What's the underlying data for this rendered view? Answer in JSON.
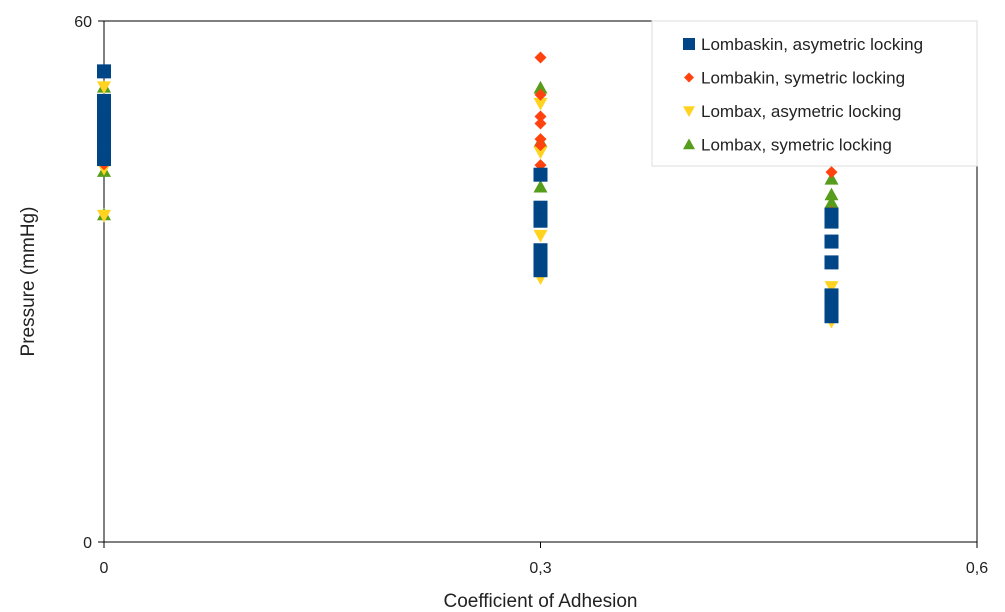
{
  "chart_data": {
    "type": "scatter",
    "title": "",
    "xlabel": "Coefficient of Adhesion",
    "ylabel": "Pressure (mmHg)",
    "xlim": [
      0,
      0.6
    ],
    "ylim": [
      0,
      60
    ],
    "x_ticks": [
      {
        "value": 0,
        "label": "0"
      },
      {
        "value": 0.3,
        "label": "0,3"
      },
      {
        "value": 0.6,
        "label": "0,6"
      }
    ],
    "y_ticks": [
      {
        "value": 0,
        "label": "0"
      },
      {
        "value": 60,
        "label": "60"
      }
    ],
    "grid": false,
    "legend_position": "top-right",
    "series": [
      {
        "name": "Lombaskin, asymetric locking",
        "marker": "square",
        "color": "#004586",
        "points": [
          [
            0,
            54.2
          ],
          [
            0,
            50.8
          ],
          [
            0,
            50.1
          ],
          [
            0,
            49.5
          ],
          [
            0,
            48.6
          ],
          [
            0,
            47.7
          ],
          [
            0,
            46.9
          ],
          [
            0,
            46.2
          ],
          [
            0,
            45.3
          ],
          [
            0,
            44.7
          ],
          [
            0,
            44.1
          ],
          [
            0.3,
            42.3
          ],
          [
            0.3,
            38.5
          ],
          [
            0.3,
            37.6
          ],
          [
            0.3,
            37.0
          ],
          [
            0.3,
            33.6
          ],
          [
            0.3,
            32.8
          ],
          [
            0.3,
            32.0
          ],
          [
            0.3,
            31.3
          ],
          [
            0.5,
            37.7
          ],
          [
            0.5,
            36.9
          ],
          [
            0.5,
            34.6
          ],
          [
            0.5,
            32.2
          ],
          [
            0.5,
            28.4
          ],
          [
            0.5,
            27.6
          ],
          [
            0.5,
            26.8
          ],
          [
            0.5,
            26.0
          ]
        ]
      },
      {
        "name": "Lombakin, symetric locking",
        "marker": "diamond",
        "color": "#ff420e",
        "points": [
          [
            0,
            50.0
          ],
          [
            0,
            44.5
          ],
          [
            0,
            43.5
          ],
          [
            0.3,
            55.8
          ],
          [
            0.3,
            51.5
          ],
          [
            0.3,
            49.0
          ],
          [
            0.3,
            48.2
          ],
          [
            0.3,
            46.4
          ],
          [
            0.3,
            45.7
          ],
          [
            0.3,
            43.4
          ],
          [
            0.5,
            42.6
          ],
          [
            0.5,
            38.0
          ]
        ]
      },
      {
        "name": "Lombax, asymetric locking",
        "marker": "triangle-down",
        "color": "#ffd320",
        "points": [
          [
            0,
            52.4
          ],
          [
            0,
            44.3
          ],
          [
            0,
            43.8
          ],
          [
            0,
            43.0
          ],
          [
            0,
            37.6
          ],
          [
            0.3,
            50.5
          ],
          [
            0.3,
            44.9
          ],
          [
            0.3,
            35.3
          ],
          [
            0.3,
            30.4
          ],
          [
            0.5,
            29.4
          ],
          [
            0.5,
            25.4
          ]
        ]
      },
      {
        "name": "Lombax, symetric locking",
        "marker": "triangle-up",
        "color": "#579d1c",
        "points": [
          [
            0,
            52.4
          ],
          [
            0,
            42.7
          ],
          [
            0,
            37.7
          ],
          [
            0.3,
            52.3
          ],
          [
            0.3,
            46.1
          ],
          [
            0.3,
            40.9
          ],
          [
            0.5,
            41.8
          ],
          [
            0.5,
            40.0
          ],
          [
            0.5,
            39.1
          ]
        ]
      }
    ]
  }
}
